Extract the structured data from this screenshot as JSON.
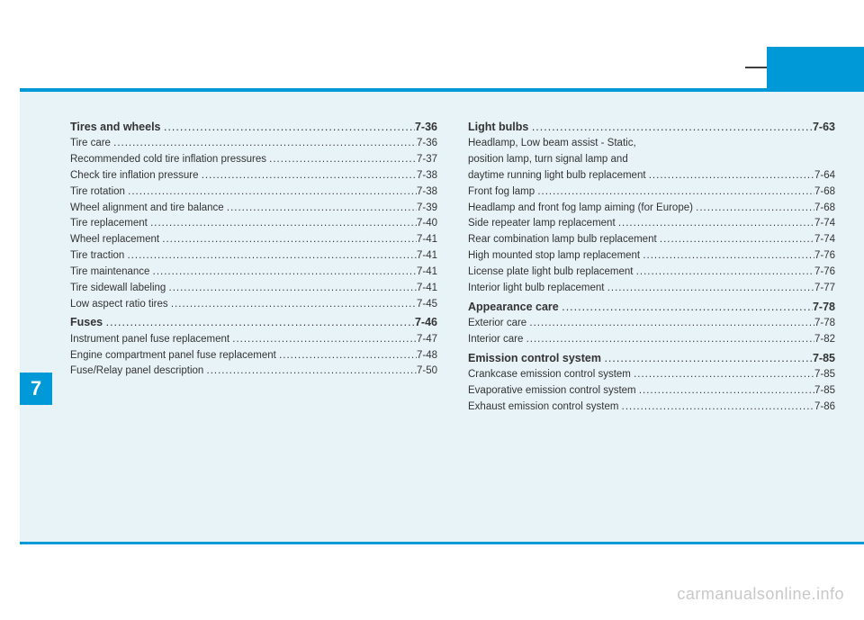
{
  "chapter": "7",
  "watermark": "carmanualsonline.info",
  "colors": {
    "accent": "#0099d8",
    "panel_bg": "#e8f3f8",
    "text": "#333333",
    "watermark": "#c8c8c8"
  },
  "left": [
    {
      "type": "section",
      "label": "Tires and wheels",
      "page": "7-36"
    },
    {
      "type": "item",
      "label": "Tire care",
      "page": "7-36"
    },
    {
      "type": "item",
      "label": "Recommended cold tire inflation pressures",
      "page": "7-37"
    },
    {
      "type": "item",
      "label": "Check tire inflation pressure",
      "page": "7-38"
    },
    {
      "type": "item",
      "label": "Tire rotation",
      "page": "7-38"
    },
    {
      "type": "item",
      "label": "Wheel alignment and tire balance",
      "page": "7-39"
    },
    {
      "type": "item",
      "label": "Tire replacement",
      "page": "7-40"
    },
    {
      "type": "item",
      "label": "Wheel replacement",
      "page": "7-41"
    },
    {
      "type": "item",
      "label": "Tire traction",
      "page": "7-41"
    },
    {
      "type": "item",
      "label": "Tire maintenance",
      "page": "7-41"
    },
    {
      "type": "item",
      "label": "Tire sidewall labeling",
      "page": "7-41"
    },
    {
      "type": "item",
      "label": "Low aspect ratio tires",
      "page": "7-45"
    },
    {
      "type": "section",
      "label": "Fuses",
      "page": "7-46"
    },
    {
      "type": "item",
      "label": "Instrument panel fuse replacement",
      "page": "7-47"
    },
    {
      "type": "item",
      "label": "Engine compartment panel fuse replacement",
      "page": "7-48"
    },
    {
      "type": "item",
      "label": "Fuse/Relay panel description",
      "page": "7-50"
    }
  ],
  "right": [
    {
      "type": "section",
      "label": "Light bulbs",
      "page": "7-63"
    },
    {
      "type": "multi",
      "lines": [
        "Headlamp, Low beam assist - Static,",
        "position lamp, turn signal lamp and"
      ],
      "last": "daytime running light bulb replacement",
      "page": "7-64"
    },
    {
      "type": "item",
      "label": "Front fog lamp",
      "page": "7-68"
    },
    {
      "type": "item",
      "label": "Headlamp and front fog lamp aiming (for Europe)",
      "page": "7-68"
    },
    {
      "type": "item",
      "label": "Side repeater lamp replacement",
      "page": "7-74"
    },
    {
      "type": "item",
      "label": "Rear combination lamp bulb replacement",
      "page": "7-74"
    },
    {
      "type": "item",
      "label": "High mounted stop lamp replacement",
      "page": "7-76"
    },
    {
      "type": "item",
      "label": "License plate light bulb replacement",
      "page": "7-76"
    },
    {
      "type": "item",
      "label": "Interior light bulb replacement",
      "page": "7-77"
    },
    {
      "type": "section",
      "label": "Appearance care",
      "page": "7-78"
    },
    {
      "type": "item",
      "label": "Exterior care",
      "page": "7-78"
    },
    {
      "type": "item",
      "label": "Interior care",
      "page": "7-82"
    },
    {
      "type": "section",
      "label": "Emission control system",
      "page": "7-85"
    },
    {
      "type": "item",
      "label": "Crankcase emission control system",
      "page": "7-85"
    },
    {
      "type": "item",
      "label": "Evaporative emission control system",
      "page": "7-85"
    },
    {
      "type": "item",
      "label": "Exhaust emission control system",
      "page": "7-86"
    }
  ]
}
